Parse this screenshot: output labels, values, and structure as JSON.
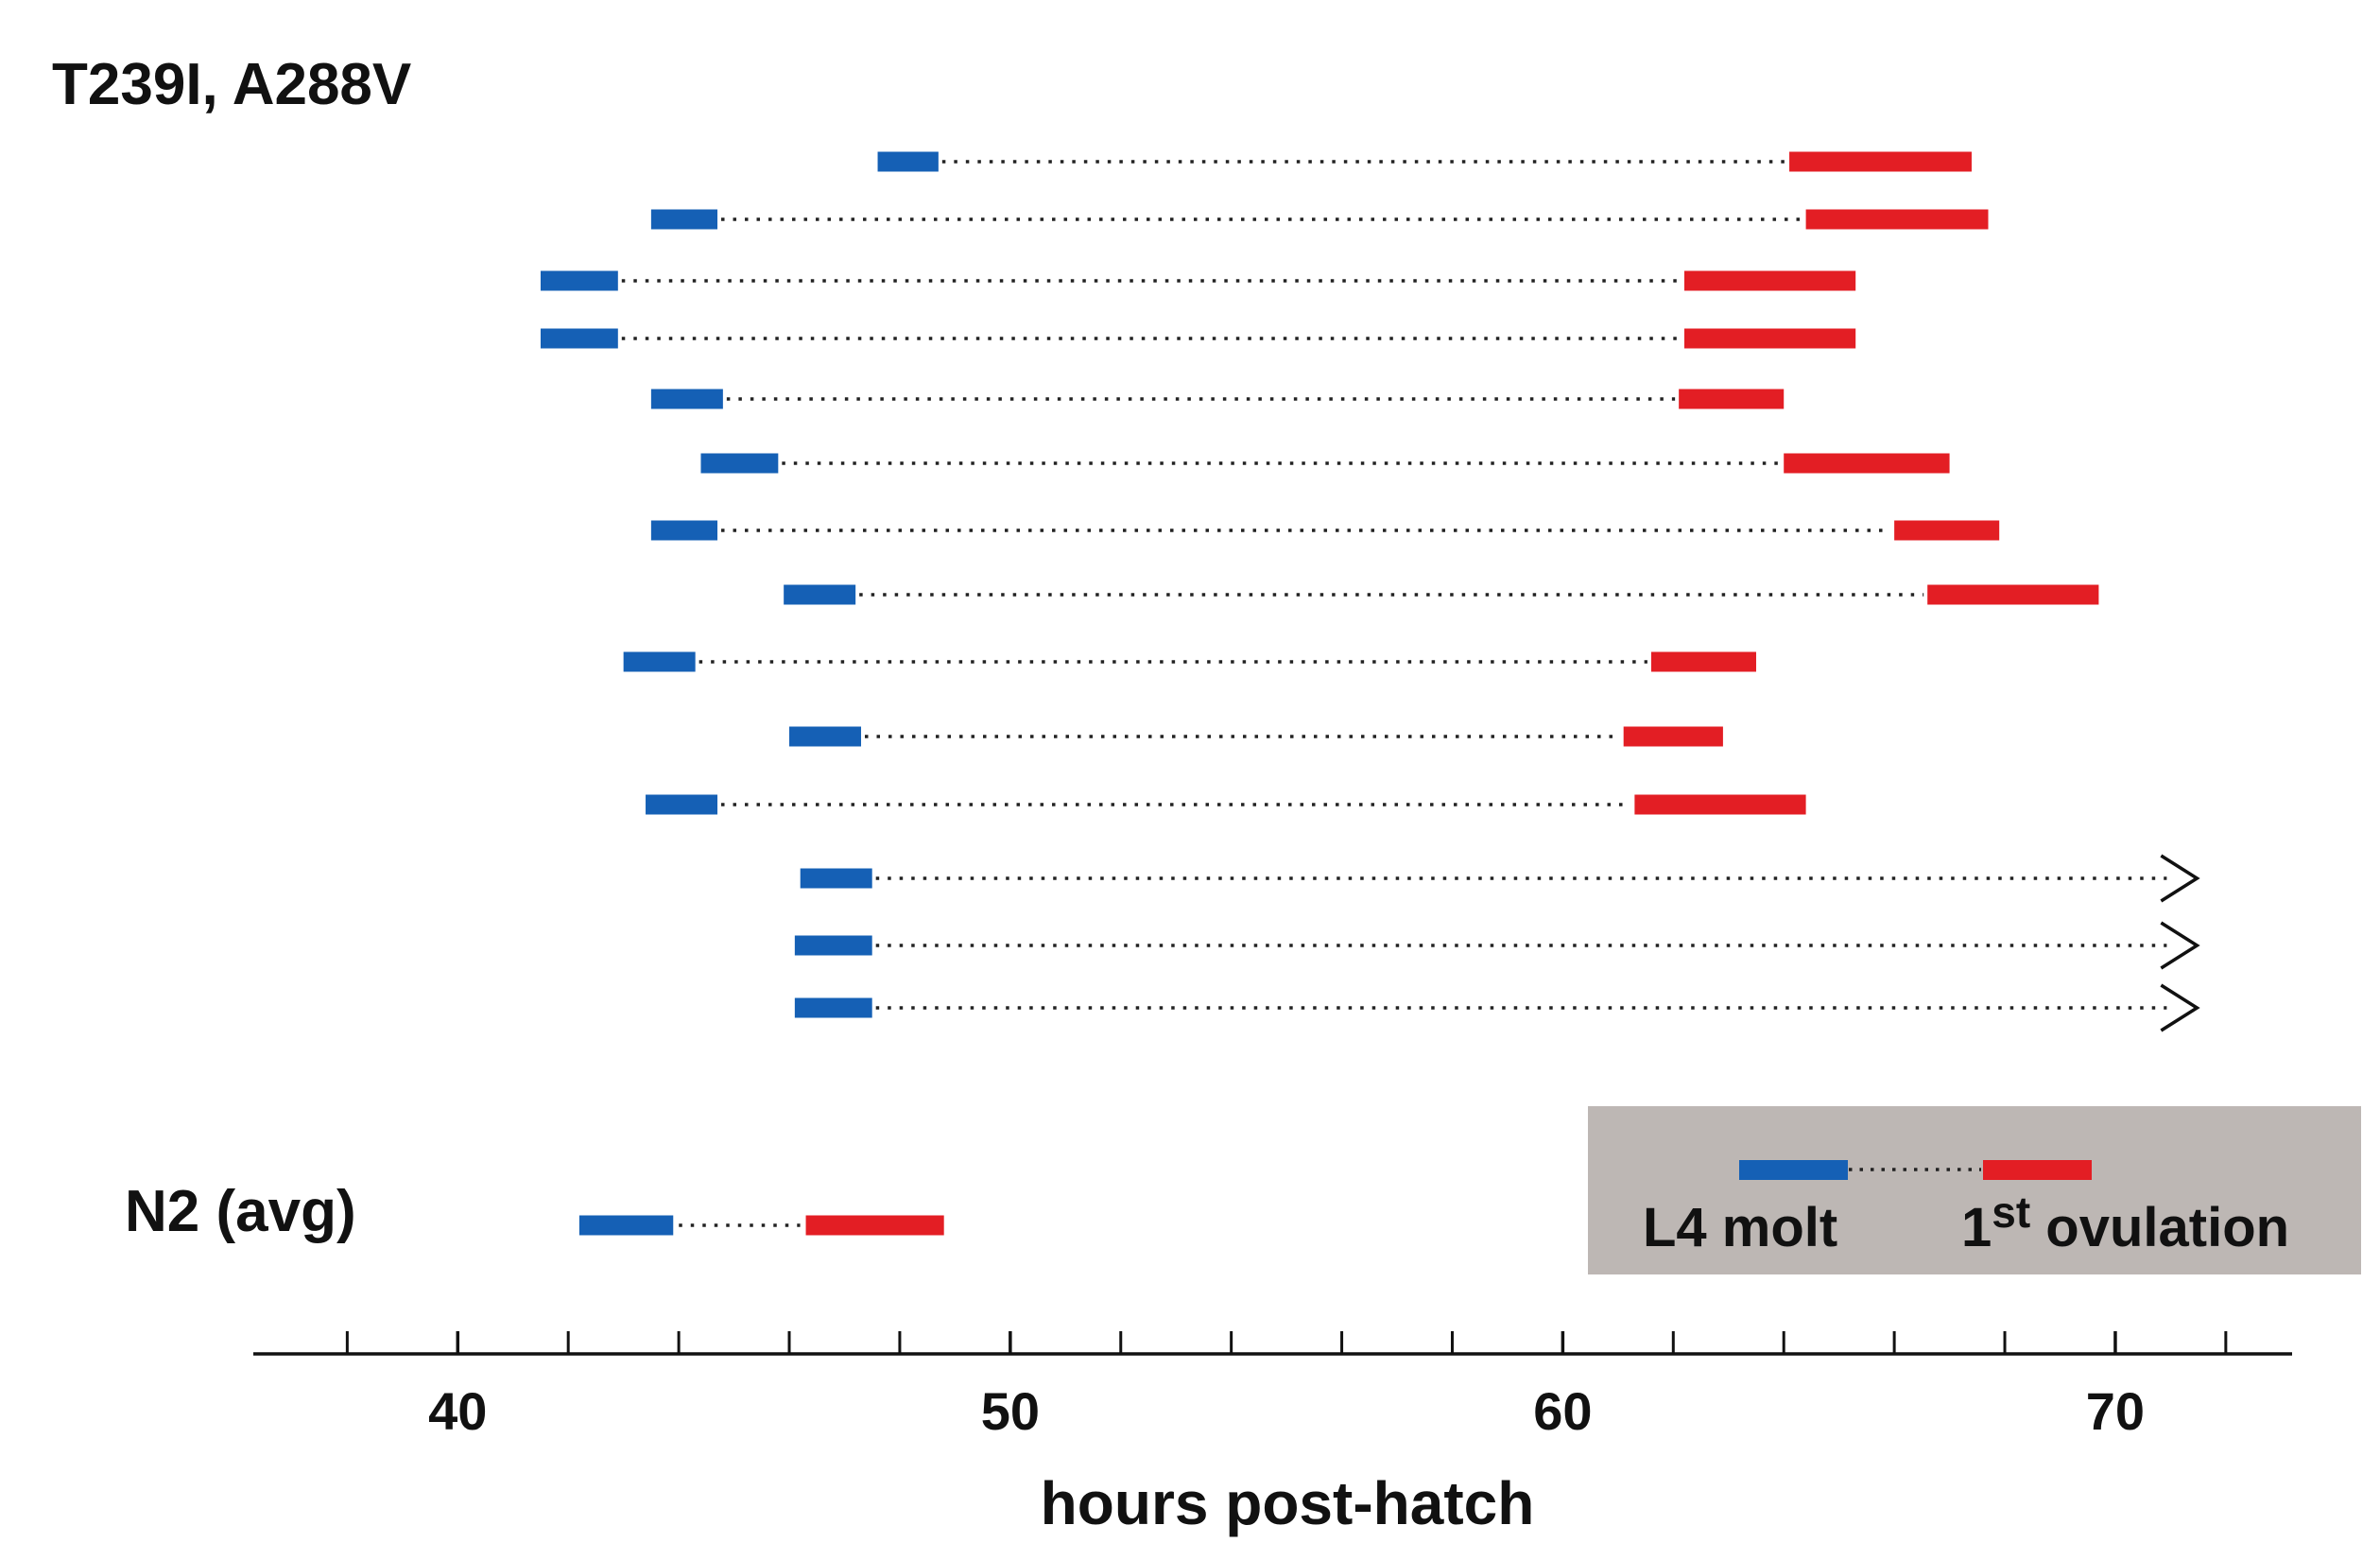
{
  "chart_data": {
    "type": "timeline",
    "title": "T239I, A288V",
    "xlabel": "hours post-hatch",
    "xlim": [
      36.3,
      73.2
    ],
    "major_ticks": [
      40,
      50,
      60,
      70
    ],
    "minor_ticks": [
      38,
      42,
      44,
      46,
      48,
      52,
      54,
      56,
      58,
      62,
      64,
      66,
      68,
      72
    ],
    "tick_labels": [
      "40",
      "50",
      "60",
      "70"
    ],
    "colors": {
      "l4_molt": "#1560b5",
      "ovulation": "#e31e24",
      "dotted": "#222222",
      "legend_bg": "#bdb7b4"
    },
    "series": [
      {
        "l4_start": 47.6,
        "l4_end": 48.7,
        "ov_start": 64.1,
        "ov_end": 67.4,
        "censored": false
      },
      {
        "l4_start": 43.5,
        "l4_end": 44.7,
        "ov_start": 64.4,
        "ov_end": 67.7,
        "censored": false
      },
      {
        "l4_start": 41.5,
        "l4_end": 42.9,
        "ov_start": 62.2,
        "ov_end": 65.3,
        "censored": false
      },
      {
        "l4_start": 41.5,
        "l4_end": 42.9,
        "ov_start": 62.2,
        "ov_end": 65.3,
        "censored": false
      },
      {
        "l4_start": 43.5,
        "l4_end": 44.8,
        "ov_start": 62.1,
        "ov_end": 64.0,
        "censored": false
      },
      {
        "l4_start": 44.4,
        "l4_end": 45.8,
        "ov_start": 64.0,
        "ov_end": 67.0,
        "censored": false
      },
      {
        "l4_start": 43.5,
        "l4_end": 44.7,
        "ov_start": 66.0,
        "ov_end": 67.9,
        "censored": false
      },
      {
        "l4_start": 45.9,
        "l4_end": 47.2,
        "ov_start": 66.6,
        "ov_end": 69.7,
        "censored": false
      },
      {
        "l4_start": 43.0,
        "l4_end": 44.3,
        "ov_start": 61.6,
        "ov_end": 63.5,
        "censored": false
      },
      {
        "l4_start": 46.0,
        "l4_end": 47.3,
        "ov_start": 61.1,
        "ov_end": 62.9,
        "censored": false
      },
      {
        "l4_start": 43.4,
        "l4_end": 44.7,
        "ov_start": 61.3,
        "ov_end": 64.4,
        "censored": false
      },
      {
        "l4_start": 46.2,
        "l4_end": 47.5,
        "ov_start": null,
        "ov_end": null,
        "censored": true,
        "censor_at": 71.0
      },
      {
        "l4_start": 46.1,
        "l4_end": 47.5,
        "ov_start": null,
        "ov_end": null,
        "censored": true,
        "censor_at": 71.0
      },
      {
        "l4_start": 46.1,
        "l4_end": 47.5,
        "ov_start": null,
        "ov_end": null,
        "censored": true,
        "censor_at": 71.0
      }
    ],
    "reference": {
      "label": "N2 (avg)",
      "l4_start": 42.2,
      "l4_end": 43.9,
      "ov_start": 46.3,
      "ov_end": 48.8
    },
    "legend": {
      "position": "bottom-right",
      "l4_label": "L4 molt",
      "ov_label_prefix": "1",
      "ov_label_sup": "st",
      "ov_label_suffix": " ovulation"
    }
  }
}
